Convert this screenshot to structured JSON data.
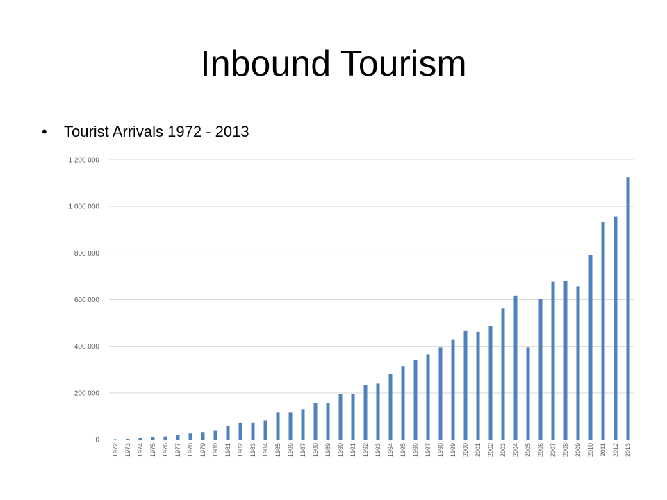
{
  "slide": {
    "title": "Inbound Tourism",
    "bullet_symbol": "•",
    "bullet_text": "Tourist Arrivals 1972 - 2013"
  },
  "colors": {
    "bar": "#4f81bd",
    "grid": "#d9d9d9",
    "axis": "#bfbfbf"
  },
  "chart_data": {
    "type": "bar",
    "categories": [
      "1972",
      "1973",
      "1974",
      "1975",
      "1976",
      "1977",
      "1978",
      "1979",
      "1980",
      "1981",
      "1982",
      "1983",
      "1984",
      "1985",
      "1986",
      "1987",
      "1988",
      "1989",
      "1990",
      "1991",
      "1992",
      "1993",
      "1994",
      "1995",
      "1996",
      "1997",
      "1998",
      "1999",
      "2000",
      "2001",
      "2002",
      "2003",
      "2004",
      "2005",
      "2006",
      "2007",
      "2008",
      "2009",
      "2010",
      "2011",
      "2012",
      "2013"
    ],
    "values": [
      1500,
      3000,
      6000,
      9000,
      13000,
      18000,
      26000,
      32000,
      40000,
      60000,
      72000,
      72000,
      82000,
      115000,
      115000,
      130000,
      157000,
      157000,
      195000,
      195000,
      235000,
      240000,
      280000,
      315000,
      340000,
      365000,
      395000,
      430000,
      468000,
      462000,
      487000,
      562000,
      617000,
      395000,
      602000,
      677000,
      682000,
      657000,
      792000,
      932000,
      957000,
      1125000
    ],
    "y_ticks": [
      "0",
      "200 000",
      "400 000",
      "600 000",
      "800 000",
      "1 000 000",
      "1 200 000"
    ],
    "ylim": [
      0,
      1200000
    ],
    "grid": true,
    "legend": "none"
  }
}
